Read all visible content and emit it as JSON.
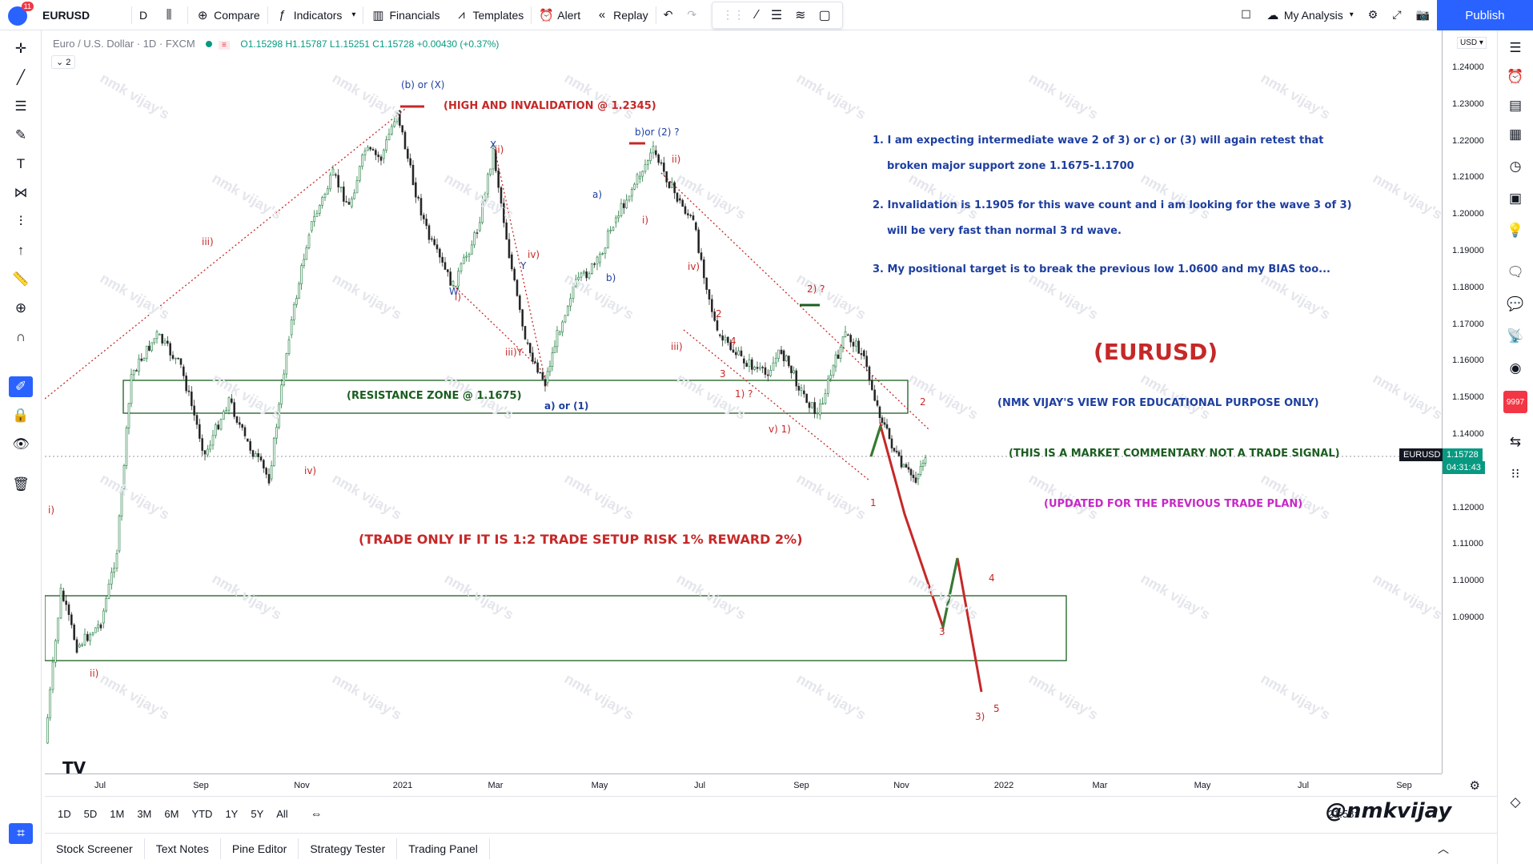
{
  "toolbar": {
    "notifications": "11",
    "symbol": "EURUSD",
    "interval": "D",
    "compare": "Compare",
    "indicators": "Indicators",
    "financials": "Financials",
    "templates": "Templates",
    "alert": "Alert",
    "replay": "Replay",
    "layout_name": "My Analysis",
    "publish": "Publish"
  },
  "legend": {
    "title": "Euro / U.S. Dollar · 1D · FXCM",
    "open": "O1.15298",
    "high": "H1.15787",
    "low": "L1.15251",
    "close": "C1.15728",
    "change": "+0.00430 (+0.37%)",
    "collapse": "2"
  },
  "price_axis": {
    "currency": "USD",
    "ticks": [
      "1.24000",
      "1.23000",
      "1.22000",
      "1.21000",
      "1.20000",
      "1.19000",
      "1.18000",
      "1.17000",
      "1.16000",
      "1.15000",
      "1.14000",
      "1.13000",
      "1.12000",
      "1.11000",
      "1.10000",
      "1.09000"
    ],
    "symbol_label": "EURUSD",
    "last_price": "1.15728",
    "countdown": "04:31:43"
  },
  "time_axis": {
    "ticks": [
      "Jul",
      "Sep",
      "Nov",
      "2021",
      "Mar",
      "May",
      "Jul",
      "Sep",
      "Nov",
      "2022",
      "Mar",
      "May",
      "Jul",
      "Sep"
    ]
  },
  "ranges": [
    "1D",
    "5D",
    "1M",
    "3M",
    "6M",
    "YTD",
    "1Y",
    "5Y",
    "All"
  ],
  "clock": "21:58:",
  "bottom_tabs": [
    "Stock Screener",
    "Text Notes",
    "Pine Editor",
    "Strategy Tester",
    "Trading Panel"
  ],
  "annotations": {
    "note1a": "1. I am expecting intermediate wave 2 of 3) or c) or (3) will again retest that",
    "note1b": "broken major support zone 1.1675-1.1700",
    "note2a": "2. Invalidation is 1.1905 for this wave count and i am looking for the wave 3 of 3)",
    "note2b": "will be very fast than normal 3 rd wave.",
    "note3": "3. My positional target is to break the previous low 1.0600 and my BIAS too...",
    "symbol": "(EURUSD)",
    "edu": "(NMK VIJAY'S VIEW FOR EDUCATIONAL PURPOSE ONLY)",
    "commentary": "(THIS IS A MARKET COMMENTARY NOT A TRADE SIGNAL)",
    "updated": "(UPDATED FOR THE PREVIOUS TRADE PLAN)",
    "high_inv": "(HIGH AND INVALIDATION @ 1.2345)",
    "resistance": "(RESISTANCE ZONE @ 1.1675)",
    "trade_only": "(TRADE ONLY IF IT IS 1:2 TRADE SETUP RISK 1% REWARD 2%)",
    "watermark": "nmk vijay's",
    "signature": "@nmkvijay"
  },
  "wave_labels": {
    "b_or_x": "(b) or (X)",
    "iii_left": "iii)",
    "i_left": "i)",
    "ii_left": "ii)",
    "iv_left": "iv)",
    "x_mid": "X",
    "ii_mid": "ii)",
    "w": "W",
    "i_mid": "i)",
    "iv_mid": "iv)",
    "iii_y": "iii)Y",
    "y": "Y",
    "a_or_1": "a)  or (1)",
    "b_or_2": "b)or (2) ?",
    "a_small": "a)",
    "b_small": "b)",
    "i_small": "i)",
    "ii_right": "ii)",
    "iv_right": "iv)",
    "iii_right": "iii)",
    "n2": "2",
    "n4": "4",
    "n3": "3",
    "one_q": "1) ?",
    "v1": "v) 1)",
    "two_q": "2) ?",
    "two": "2",
    "one": "1",
    "p3": "3",
    "p4": "4",
    "p5": "5",
    "p3paren": "3)"
  },
  "colors": {
    "accent": "#2962ff",
    "up": "#089981",
    "down": "#f23645",
    "note_blue": "#1e3fa0",
    "red": "#c62828",
    "green": "#1b5e20",
    "magenta": "#c728c7"
  }
}
